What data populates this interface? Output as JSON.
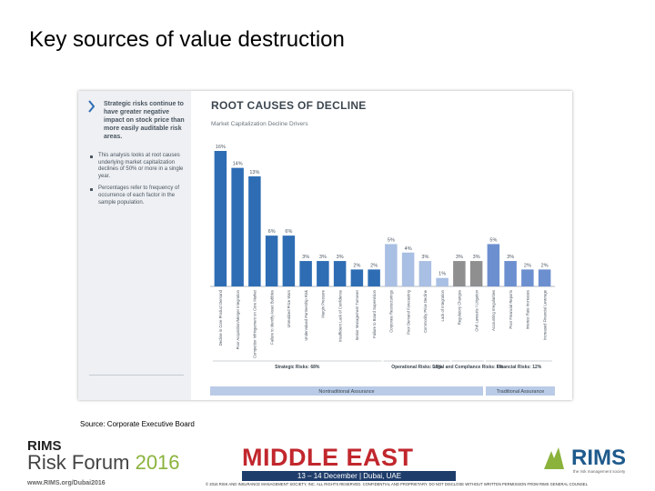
{
  "slide": {
    "title": "Key sources of value destruction",
    "source": "Source: Corporate Executive Board"
  },
  "sidebar": {
    "headline": "Strategic risks continue to have greater negative impact on stock price than more easily auditable risk areas.",
    "bullets": [
      "This analysis looks at root causes underlying market capitalization declines of 50% or more in a single year.",
      "Percentages refer to frequency of occurrence of each factor in the sample population."
    ],
    "note": "",
    "copyright": ""
  },
  "chart_data": {
    "type": "bar",
    "title": "ROOT CAUSES OF DECLINE",
    "subtitle": "Market Capitalization Decline Drivers",
    "note": "",
    "categories": [
      "Decline in Core Product Demand",
      "Poor Acquisition/Merger Integration",
      "Competitor Infringement on Core Market",
      "Failure to Identify Asset Bubbles",
      "Unrealized Price Wars",
      "Undervalued Partnership Risk",
      "Margin Pressure",
      "Insufficient Lack of Confidence",
      "Senior Management Turnover",
      "Failure to Board Supervision",
      "Corporate Restructurings",
      "Poor Demand Forecasting",
      "Commodity Price Decline",
      "Lack of Integration",
      "Regulatory Changes",
      "Civil Lawsuits / Litigation",
      "Accounting Irregularities",
      "Poor Financial Reports",
      "Interest Rate Increases",
      "Increased Financial Leverage"
    ],
    "values": [
      16,
      14,
      13,
      6,
      6,
      3,
      3,
      3,
      2,
      2,
      5,
      4,
      3,
      1,
      3,
      3,
      5,
      3,
      2,
      2
    ],
    "value_labels": [
      "16%",
      "14%",
      "13%",
      "6%",
      "6%",
      "3%",
      "3%",
      "3%",
      "2%",
      "2%",
      "5%",
      "4%",
      "3%",
      "1%",
      "3%",
      "3%",
      "5%",
      "3%",
      "2%",
      "2%"
    ],
    "groups": [
      {
        "label": "Strategic Risks: 68%",
        "start": 0,
        "end": 9,
        "color": "#2e6db4"
      },
      {
        "label": "Operational Risks: 13%",
        "start": 10,
        "end": 13,
        "color": "#a9bfe3"
      },
      {
        "label": "Legal and Compliance Risks: 6%",
        "start": 14,
        "end": 15,
        "color": "#8f8f8f"
      },
      {
        "label": "Financial Risks: 12%",
        "start": 16,
        "end": 19,
        "color": "#6c8fd0"
      }
    ],
    "assurance": [
      {
        "label": "Nontraditional Assurance"
      },
      {
        "label": "Traditional Assurance"
      }
    ],
    "n_label": "",
    "ylim": [
      0,
      16
    ]
  },
  "footer": {
    "rims": "RIMS",
    "forum": "Risk Forum",
    "year": "2016",
    "url": "www.RIMS.org/Dubai2016",
    "event": "MIDDLE EAST",
    "dates": "13 – 14 December | Dubai, UAE",
    "copyright": "© 2016 RISK AND INSURANCE MANAGEMENT SOCIETY, INC. ALL RIGHTS RESERVED. CONFIDENTIAL AND PROPRIETARY. DO NOT DISCLOSE WITHOUT WRITTEN PERMISSION FROM RIMS GENERAL COUNSEL",
    "logo": "RIMS",
    "tagline": "the risk management society"
  }
}
